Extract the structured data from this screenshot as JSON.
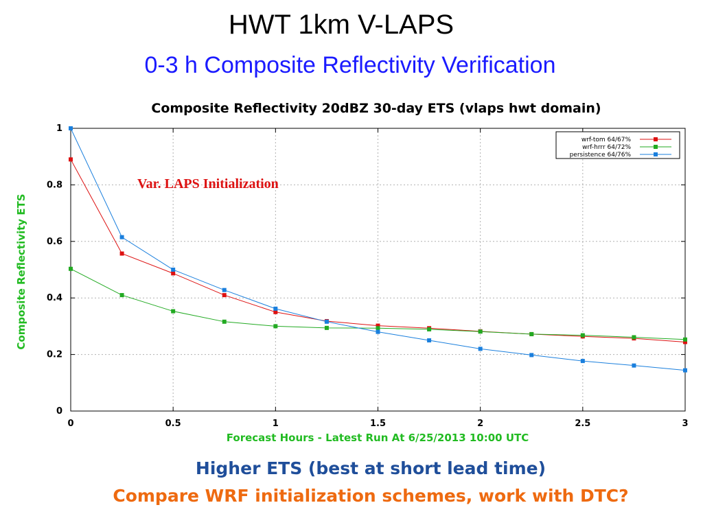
{
  "slide": {
    "title": "HWT 1km V-LAPS",
    "subtitle": "0-3 h Composite Reflectivity Verification",
    "footer_line1": "Higher ETS (best at short lead time)",
    "footer_line2": "Compare WRF initialization schemes, work with DTC?"
  },
  "colors": {
    "subtitle": "#1a1aff",
    "axis_labels": "#22bb22",
    "annotation": "#dd1111",
    "footer_line1": "#1f4e9a",
    "footer_line2": "#ee6a10"
  },
  "chart_data": {
    "type": "line",
    "title": "Composite Reflectivity 20dBZ 30-day ETS (vlaps hwt domain)",
    "xlabel": "Forecast Hours - Latest Run At 6/25/2013 10:00 UTC",
    "ylabel": "Composite Reflectivity ETS",
    "annotation": "Var. LAPS Initialization",
    "xlim": [
      0,
      3
    ],
    "ylim": [
      0,
      1
    ],
    "xticks": [
      0,
      0.5,
      1,
      1.5,
      2,
      2.5,
      3
    ],
    "xtick_labels": [
      "0",
      "0.5",
      "1",
      "1.5",
      "2",
      "2.5",
      "3"
    ],
    "yticks": [
      0,
      0.2,
      0.4,
      0.6,
      0.8,
      1
    ],
    "ytick_labels": [
      "0",
      "0.2",
      "0.4",
      "0.6",
      "0.8",
      "1"
    ],
    "grid": true,
    "legend_position": "top-right",
    "x": [
      0,
      0.25,
      0.5,
      0.75,
      1,
      1.25,
      1.5,
      1.75,
      2,
      2.25,
      2.5,
      2.75,
      3
    ],
    "series": [
      {
        "name": "wrf-tom 64/67%",
        "color": "#dd1111",
        "values": [
          0.89,
          0.557,
          0.487,
          0.41,
          0.35,
          0.318,
          0.302,
          0.293,
          0.282,
          0.272,
          0.264,
          0.257,
          0.244
        ]
      },
      {
        "name": "wrf-hrrr 64/72%",
        "color": "#22aa22",
        "values": [
          0.503,
          0.41,
          0.353,
          0.316,
          0.3,
          0.294,
          0.293,
          0.289,
          0.281,
          0.272,
          0.268,
          0.261,
          0.253
        ]
      },
      {
        "name": "persistence 64/76%",
        "color": "#1a7fdd",
        "values": [
          1.0,
          0.615,
          0.5,
          0.428,
          0.362,
          0.316,
          0.28,
          0.25,
          0.22,
          0.198,
          0.177,
          0.161,
          0.144
        ]
      }
    ]
  }
}
